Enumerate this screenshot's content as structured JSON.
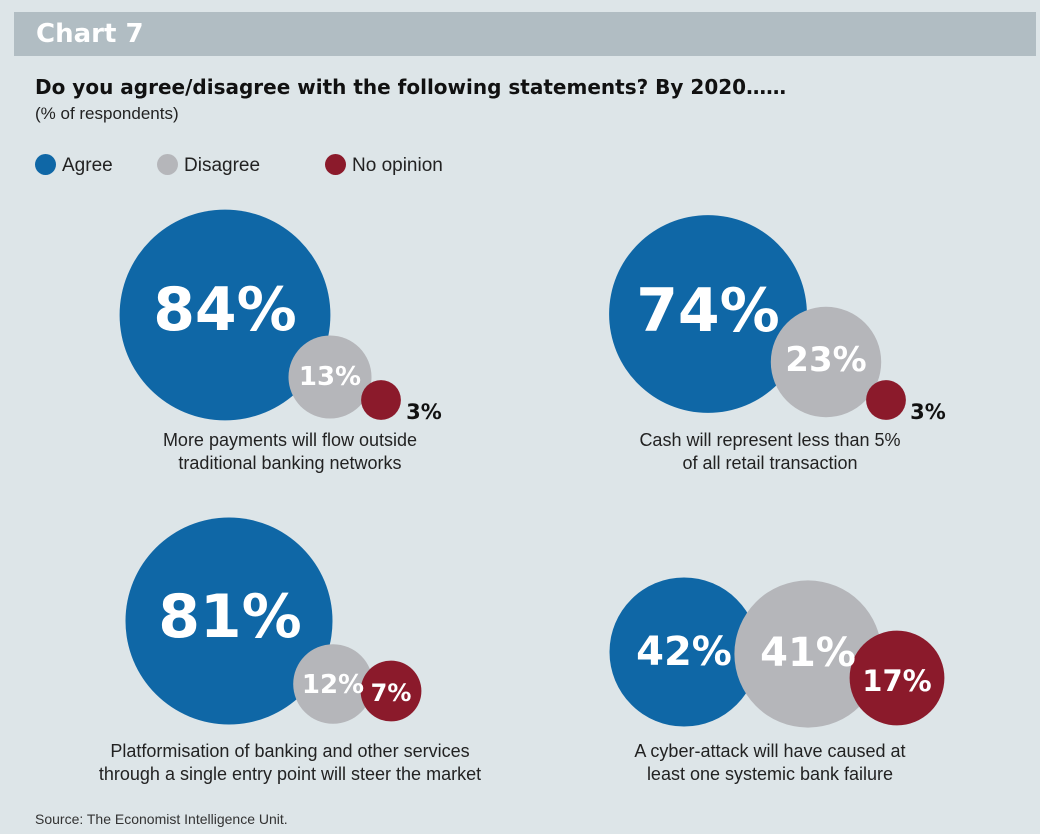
{
  "header": {
    "label": "Chart 7"
  },
  "title": "Do you agree/disagree with the following statements? By 2020……",
  "subtitle": "(% of respondents)",
  "source": "Source: The Economist Intelligence Unit.",
  "colors": {
    "agree": "#0f67a6",
    "disagree": "#b5b6ba",
    "no_opinion": "#8b1a2b",
    "background": "#dde5e8",
    "header": "#b1bdc3"
  },
  "legend": [
    {
      "label": "Agree",
      "color": "#0f67a6"
    },
    {
      "label": "Disagree",
      "color": "#b5b6ba"
    },
    {
      "label": "No opinion",
      "color": "#8b1a2b"
    }
  ],
  "chart_data": [
    {
      "type": "bubble",
      "statement": [
        "More payments will flow outside",
        "traditional banking networks"
      ],
      "categories": [
        "Agree",
        "Disagree",
        "No opinion"
      ],
      "values": [
        84,
        13,
        3
      ],
      "labels": [
        "84%",
        "13%",
        "3%"
      ]
    },
    {
      "type": "bubble",
      "statement": [
        "Cash will represent less than 5%",
        "of all retail transaction"
      ],
      "categories": [
        "Agree",
        "Disagree",
        "No opinion"
      ],
      "values": [
        74,
        23,
        3
      ],
      "labels": [
        "74%",
        "23%",
        "3%"
      ]
    },
    {
      "type": "bubble",
      "statement": [
        "Platformisation of banking and other services",
        "through a single entry point will steer the market"
      ],
      "categories": [
        "Agree",
        "Disagree",
        "No opinion"
      ],
      "values": [
        81,
        12,
        7
      ],
      "labels": [
        "81%",
        "12%",
        "7%"
      ]
    },
    {
      "type": "bubble",
      "statement": [
        "A cyber-attack will have caused at",
        "least one systemic bank failure"
      ],
      "categories": [
        "Agree",
        "Disagree",
        "No opinion"
      ],
      "values": [
        42,
        41,
        17
      ],
      "labels": [
        "42%",
        "41%",
        "17%"
      ]
    }
  ]
}
